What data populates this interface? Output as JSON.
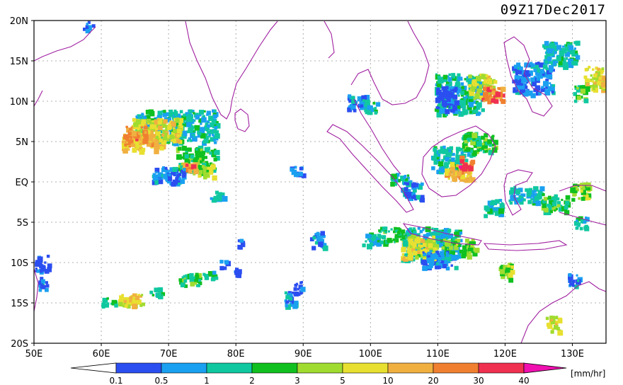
{
  "title": "09Z17Dec2017",
  "units": "[mm/hr]",
  "lat_ticks": [
    "20N",
    "15N",
    "10N",
    "5N",
    "EQ",
    "5S",
    "10S",
    "15S",
    "20S"
  ],
  "lon_ticks": [
    "50E",
    "60E",
    "70E",
    "80E",
    "90E",
    "100E",
    "110E",
    "120E",
    "130E"
  ],
  "colorbar": {
    "labels": [
      "0.1",
      "0.5",
      "1",
      "2",
      "3",
      "5",
      "10",
      "20",
      "30",
      "40"
    ],
    "colors": [
      "#ffffff",
      "#2b4ef0",
      "#1aa0f0",
      "#10c8a0",
      "#10c020",
      "#a0dc30",
      "#e8e030",
      "#f0b040",
      "#f08030",
      "#f03050",
      "#f010b0"
    ]
  },
  "map": {
    "lon_range": [
      50,
      135
    ],
    "lat_range": [
      -20,
      20
    ],
    "coast_color": "#a020a0",
    "grid": true
  },
  "precip_cells": [
    {
      "lon": 71,
      "lat": 7,
      "w": 12,
      "h": 4,
      "c": 3
    },
    {
      "lon": 68,
      "lat": 6.5,
      "w": 7,
      "h": 3,
      "c": 6
    },
    {
      "lon": 66,
      "lat": 5,
      "w": 6,
      "h": 2,
      "c": 7
    },
    {
      "lon": 74,
      "lat": 3,
      "w": 6,
      "h": 3,
      "c": 4
    },
    {
      "lon": 70,
      "lat": 1,
      "w": 5,
      "h": 2,
      "c": 2
    },
    {
      "lon": 75,
      "lat": 1.5,
      "w": 3,
      "h": 1.5,
      "c": 5
    },
    {
      "lon": 65,
      "lat": 6,
      "w": 3,
      "h": 2,
      "c": 8
    },
    {
      "lon": 77,
      "lat": -1.5,
      "w": 2,
      "h": 1,
      "c": 3
    },
    {
      "lon": 98,
      "lat": 10,
      "w": 3,
      "h": 2,
      "c": 2
    },
    {
      "lon": 100,
      "lat": 9.5,
      "w": 2,
      "h": 1.5,
      "c": 3
    },
    {
      "lon": 113,
      "lat": 11,
      "w": 7,
      "h": 5,
      "c": 3
    },
    {
      "lon": 116.5,
      "lat": 12,
      "w": 4,
      "h": 3,
      "c": 6
    },
    {
      "lon": 118,
      "lat": 11,
      "w": 3,
      "h": 2,
      "c": 8
    },
    {
      "lon": 111,
      "lat": 10.5,
      "w": 3,
      "h": 3,
      "c": 1
    },
    {
      "lon": 124,
      "lat": 13,
      "w": 6,
      "h": 4,
      "c": 2
    },
    {
      "lon": 128,
      "lat": 16,
      "w": 5,
      "h": 3,
      "c": 3
    },
    {
      "lon": 133,
      "lat": 13,
      "w": 3,
      "h": 3,
      "c": 6
    },
    {
      "lon": 131,
      "lat": 11,
      "w": 2,
      "h": 2,
      "c": 4
    },
    {
      "lon": 112,
      "lat": 3,
      "w": 6,
      "h": 3,
      "c": 3
    },
    {
      "lon": 113,
      "lat": 1.5,
      "w": 4,
      "h": 2,
      "c": 7
    },
    {
      "lon": 116,
      "lat": 5,
      "w": 5,
      "h": 2.5,
      "c": 4
    },
    {
      "lon": 114,
      "lat": 2.5,
      "w": 2,
      "h": 1.5,
      "c": 9
    },
    {
      "lon": 104,
      "lat": 0.5,
      "w": 3,
      "h": 1.5,
      "c": 3
    },
    {
      "lon": 106,
      "lat": -1,
      "w": 3,
      "h": 2,
      "c": 2
    },
    {
      "lon": 123,
      "lat": -1.5,
      "w": 5,
      "h": 2,
      "c": 3
    },
    {
      "lon": 127,
      "lat": -2.5,
      "w": 4,
      "h": 2,
      "c": 4
    },
    {
      "lon": 131,
      "lat": -1,
      "w": 3,
      "h": 2,
      "c": 5
    },
    {
      "lon": 118,
      "lat": -3,
      "w": 3,
      "h": 2,
      "c": 3
    },
    {
      "lon": 109,
      "lat": -7.5,
      "w": 9,
      "h": 4,
      "c": 3
    },
    {
      "lon": 107,
      "lat": -8,
      "w": 5,
      "h": 3,
      "c": 6
    },
    {
      "lon": 113,
      "lat": -8,
      "w": 5,
      "h": 2,
      "c": 5
    },
    {
      "lon": 110,
      "lat": -9.5,
      "w": 5,
      "h": 2,
      "c": 2
    },
    {
      "lon": 103,
      "lat": -6.5,
      "w": 4,
      "h": 2,
      "c": 4
    },
    {
      "lon": 100,
      "lat": -7,
      "w": 3,
      "h": 1.5,
      "c": 3
    },
    {
      "lon": 92,
      "lat": -7,
      "w": 2,
      "h": 2,
      "c": 2
    },
    {
      "lon": 120,
      "lat": -11,
      "w": 2,
      "h": 2,
      "c": 5
    },
    {
      "lon": 127,
      "lat": -17.5,
      "w": 2,
      "h": 2,
      "c": 6
    },
    {
      "lon": 64,
      "lat": -14.5,
      "w": 4,
      "h": 1.5,
      "c": 6
    },
    {
      "lon": 61,
      "lat": -14.8,
      "w": 2,
      "h": 1,
      "c": 3
    },
    {
      "lon": 68,
      "lat": -13.5,
      "w": 2,
      "h": 1,
      "c": 3
    },
    {
      "lon": 73,
      "lat": -12,
      "w": 3,
      "h": 1.5,
      "c": 4
    },
    {
      "lon": 76,
      "lat": -11.5,
      "w": 2,
      "h": 1,
      "c": 3
    },
    {
      "lon": 88,
      "lat": -14.5,
      "w": 2,
      "h": 2,
      "c": 2
    },
    {
      "lon": 89,
      "lat": -13,
      "w": 1.5,
      "h": 1.5,
      "c": 1
    },
    {
      "lon": 51,
      "lat": -10,
      "w": 2,
      "h": 2,
      "c": 1
    },
    {
      "lon": 51,
      "lat": -12.5,
      "w": 1.5,
      "h": 1.5,
      "c": 2
    },
    {
      "lon": 58,
      "lat": 19.5,
      "w": 1.5,
      "h": 1,
      "c": 1
    },
    {
      "lon": 89,
      "lat": 1.5,
      "w": 2,
      "h": 1,
      "c": 2
    },
    {
      "lon": 80.5,
      "lat": -7.5,
      "w": 1,
      "h": 1,
      "c": 2
    },
    {
      "lon": 78,
      "lat": -10,
      "w": 1,
      "h": 1,
      "c": 2
    },
    {
      "lon": 80,
      "lat": -11,
      "w": 1,
      "h": 1,
      "c": 1
    },
    {
      "lon": 73,
      "lat": 2,
      "w": 2,
      "h": 1,
      "c": 8
    },
    {
      "lon": 131,
      "lat": -5,
      "w": 2,
      "h": 1.5,
      "c": 3
    },
    {
      "lon": 130,
      "lat": -12,
      "w": 1.5,
      "h": 1.5,
      "c": 2
    }
  ]
}
